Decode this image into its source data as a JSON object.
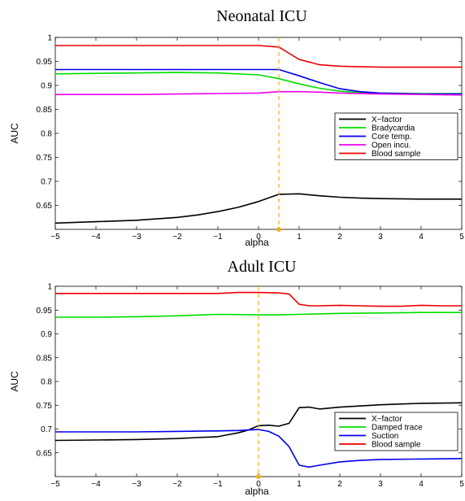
{
  "chart_data": [
    {
      "type": "line",
      "title": "Neonatal ICU",
      "xlabel": "alpha",
      "ylabel": "AUC",
      "xlim": [
        -5,
        5
      ],
      "ylim": [
        0.6,
        1.0
      ],
      "xticks": [
        -5,
        -4,
        -3,
        -2,
        -1,
        0,
        1,
        2,
        3,
        4,
        5
      ],
      "yticks": [
        0.65,
        0.7,
        0.75,
        0.8,
        0.85,
        0.9,
        0.95,
        1
      ],
      "ytick_labels": [
        "0.65",
        "0.7",
        "0.75",
        "0.8",
        "0.85",
        "0.9",
        "0.95",
        "1"
      ],
      "marker_x": 0.5,
      "marker_color": "#f0b020",
      "legend_position": "right",
      "series": [
        {
          "name": "X−factor",
          "color": "#000000",
          "x": [
            -5,
            -4,
            -3,
            -2,
            -1.5,
            -1,
            -0.5,
            0,
            0.5,
            1,
            1.5,
            2,
            2.5,
            3,
            4,
            5
          ],
          "y": [
            0.613,
            0.616,
            0.619,
            0.625,
            0.63,
            0.637,
            0.646,
            0.658,
            0.673,
            0.674,
            0.67,
            0.667,
            0.665,
            0.664,
            0.663,
            0.663
          ]
        },
        {
          "name": "Bradycardia",
          "color": "#00dd00",
          "x": [
            -5,
            -4,
            -3,
            -2,
            -1,
            0,
            0.5,
            1,
            1.5,
            2,
            2.5,
            3,
            4,
            5
          ],
          "y": [
            0.924,
            0.925,
            0.926,
            0.927,
            0.926,
            0.922,
            0.914,
            0.903,
            0.894,
            0.888,
            0.885,
            0.884,
            0.883,
            0.883
          ]
        },
        {
          "name": "Core temp.",
          "color": "#0000ee",
          "x": [
            -5,
            -4,
            -3,
            -2,
            -1,
            0,
            0.5,
            1,
            1.5,
            2,
            2.5,
            3,
            4,
            5
          ],
          "y": [
            0.933,
            0.933,
            0.933,
            0.933,
            0.933,
            0.933,
            0.933,
            0.92,
            0.906,
            0.893,
            0.887,
            0.884,
            0.882,
            0.882
          ]
        },
        {
          "name": "Open incu.",
          "color": "#ee00ee",
          "x": [
            -5,
            -4,
            -3,
            -2,
            -1,
            0,
            0.5,
            1,
            1.5,
            2,
            3,
            4,
            5
          ],
          "y": [
            0.881,
            0.881,
            0.881,
            0.882,
            0.883,
            0.884,
            0.887,
            0.887,
            0.886,
            0.884,
            0.882,
            0.881,
            0.88
          ]
        },
        {
          "name": "Blood sample",
          "color": "#ee0000",
          "x": [
            -5,
            -4,
            -3,
            -2,
            -1,
            0,
            0.5,
            0.75,
            1,
            1.5,
            2,
            3,
            4,
            5
          ],
          "y": [
            0.983,
            0.983,
            0.983,
            0.983,
            0.983,
            0.983,
            0.98,
            0.967,
            0.954,
            0.943,
            0.94,
            0.938,
            0.938,
            0.938
          ]
        }
      ]
    },
    {
      "type": "line",
      "title": "Adult ICU",
      "xlabel": "alpha",
      "ylabel": "AUC",
      "xlim": [
        -5,
        5
      ],
      "ylim": [
        0.6,
        1.0
      ],
      "xticks": [
        -5,
        -4,
        -3,
        -2,
        -1,
        0,
        1,
        2,
        3,
        4,
        5
      ],
      "yticks": [
        0.65,
        0.7,
        0.75,
        0.8,
        0.85,
        0.9,
        0.95,
        1
      ],
      "ytick_labels": [
        "0.65",
        "0.7",
        "0.75",
        "0.8",
        "0.85",
        "0.9",
        "0.95",
        "1"
      ],
      "marker_x": 0,
      "marker_color": "#f0b020",
      "legend_position": "right",
      "series": [
        {
          "name": "X−factor",
          "color": "#000000",
          "x": [
            -5,
            -4,
            -3,
            -2,
            -1.5,
            -1,
            -0.75,
            -0.5,
            -0.25,
            0,
            0.25,
            0.5,
            0.75,
            1,
            1.25,
            1.5,
            2,
            3,
            4,
            5
          ],
          "y": [
            0.676,
            0.677,
            0.678,
            0.68,
            0.682,
            0.684,
            0.688,
            0.692,
            0.698,
            0.707,
            0.708,
            0.706,
            0.712,
            0.745,
            0.746,
            0.742,
            0.746,
            0.751,
            0.754,
            0.755
          ]
        },
        {
          "name": "Damped trace",
          "color": "#00dd00",
          "x": [
            -5,
            -4,
            -3,
            -2,
            -1,
            0,
            0.5,
            1,
            1.5,
            2,
            3,
            4,
            5
          ],
          "y": [
            0.935,
            0.935,
            0.936,
            0.938,
            0.941,
            0.94,
            0.94,
            0.941,
            0.942,
            0.943,
            0.944,
            0.945,
            0.945
          ]
        },
        {
          "name": "Suction",
          "color": "#0000ee",
          "x": [
            -5,
            -4,
            -3,
            -2,
            -1,
            -0.5,
            0,
            0.25,
            0.5,
            0.75,
            1,
            1.25,
            1.5,
            2,
            2.5,
            3,
            4,
            5
          ],
          "y": [
            0.694,
            0.694,
            0.694,
            0.695,
            0.696,
            0.697,
            0.699,
            0.695,
            0.685,
            0.663,
            0.624,
            0.62,
            0.624,
            0.631,
            0.634,
            0.636,
            0.637,
            0.638
          ]
        },
        {
          "name": "Blood sample",
          "color": "#ee0000",
          "x": [
            -5,
            -4,
            -3,
            -2,
            -1,
            -0.5,
            0,
            0.5,
            0.75,
            1,
            1.25,
            1.5,
            2,
            2.5,
            3,
            3.5,
            4,
            4.5,
            5
          ],
          "y": [
            0.985,
            0.985,
            0.985,
            0.985,
            0.985,
            0.987,
            0.987,
            0.986,
            0.984,
            0.962,
            0.959,
            0.959,
            0.96,
            0.959,
            0.958,
            0.958,
            0.96,
            0.959,
            0.959
          ]
        }
      ]
    }
  ]
}
